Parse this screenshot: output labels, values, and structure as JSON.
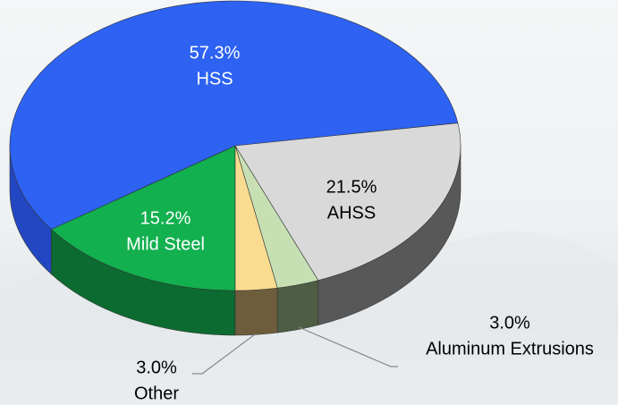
{
  "chart_data": {
    "type": "pie3d",
    "categories": [
      "Mild Steel",
      "HSS",
      "AHSS",
      "Aluminum Extrusions",
      "Other"
    ],
    "values": [
      15.2,
      57.3,
      21.5,
      3.0,
      3.0
    ],
    "value_labels": [
      "15.2%",
      "57.3%",
      "21.5%",
      "3.0%",
      "3.0%"
    ],
    "colors": [
      "#12b04f",
      "#2d62f2",
      "#d9d9d9",
      "#c6e0b4",
      "#fadc90"
    ],
    "side_colors": [
      "#0b6b30",
      "#2347c2",
      "#585858",
      "#4d5e44",
      "#6e5d3c"
    ],
    "label_colors": [
      "#ffffff",
      "#ffffff",
      "#000000",
      "#000000",
      "#000000"
    ]
  }
}
